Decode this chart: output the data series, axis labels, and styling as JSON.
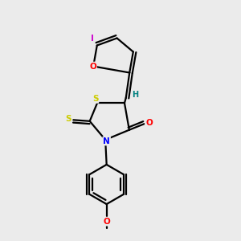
{
  "bg_color": "#ebebeb",
  "atom_colors": {
    "O": "#ff0000",
    "N": "#0000ff",
    "S": "#cccc00",
    "I": "#cc00cc",
    "H": "#008080",
    "C": "#000000"
  }
}
